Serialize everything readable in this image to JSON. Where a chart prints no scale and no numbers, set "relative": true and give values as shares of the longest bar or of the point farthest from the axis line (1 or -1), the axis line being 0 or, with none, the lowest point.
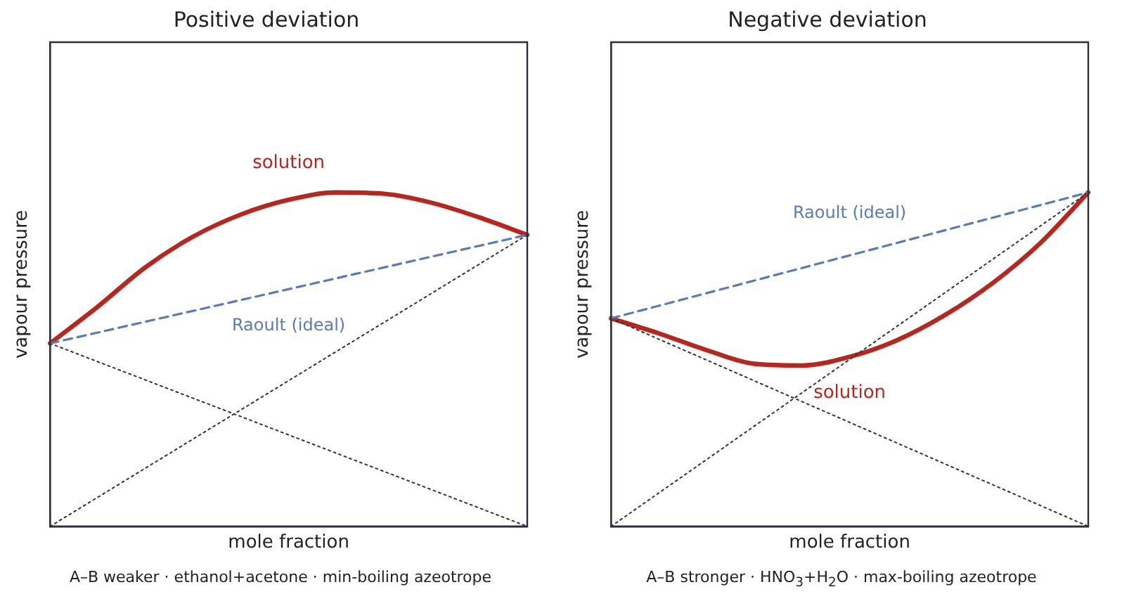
{
  "chart_data": [
    {
      "type": "line",
      "title": "Positive deviation",
      "xlabel": "mole fraction",
      "ylabel": "vapour pressure",
      "relative": true,
      "tick_labels": false,
      "grid": false,
      "marker": "none",
      "categories": [
        null,
        null,
        null,
        null,
        null,
        null,
        null,
        null,
        null,
        null,
        null
      ],
      "series": [
        {
          "name": "Raoult (ideal)",
          "color": "#5b7bb5",
          "line_style": "dashed",
          "values": [
            0.548,
            null,
            null,
            null,
            null,
            null,
            null,
            null,
            null,
            null,
            0.873
          ]
        },
        {
          "color": "#333333",
          "line_style": "dotted",
          "values": [
            0.548,
            null,
            null,
            null,
            null,
            null,
            null,
            null,
            null,
            null,
            0
          ]
        },
        {
          "color": "#333333",
          "line_style": "dotted",
          "values": [
            0,
            null,
            null,
            null,
            null,
            null,
            null,
            null,
            null,
            null,
            0.873
          ]
        },
        {
          "name": "solution",
          "color": "#b5271f",
          "line_style": "solid",
          "values": [
            0.548,
            0.658,
            0.776,
            0.868,
            0.934,
            0.978,
            1,
            0.996,
            0.969,
            0.925,
            0.873
          ]
        }
      ],
      "annotations": [
        "A–B weaker · ethanol+acetone · min-boiling azeotrope"
      ]
    },
    {
      "type": "line",
      "title": "Negative deviation",
      "xlabel": "mole fraction",
      "ylabel": "vapour pressure",
      "relative": true,
      "tick_labels": false,
      "grid": false,
      "marker": "none",
      "categories": [
        null,
        null,
        null,
        null,
        null,
        null,
        null,
        null,
        null,
        null,
        null
      ],
      "series": [
        {
          "name": "Raoult (ideal)",
          "color": "#5b7bb5",
          "line_style": "dashed",
          "values": [
            0.623,
            null,
            null,
            null,
            null,
            null,
            null,
            null,
            null,
            null,
            1
          ]
        },
        {
          "color": "#333333",
          "line_style": "dotted",
          "values": [
            0.623,
            null,
            null,
            null,
            null,
            null,
            null,
            null,
            null,
            null,
            0
          ]
        },
        {
          "color": "#333333",
          "line_style": "dotted",
          "values": [
            0,
            null,
            null,
            null,
            null,
            null,
            null,
            null,
            null,
            null,
            1
          ]
        },
        {
          "name": "solution",
          "color": "#b5271f",
          "line_style": "solid",
          "values": [
            0.623,
            0.578,
            0.528,
            0.487,
            0.482,
            0.508,
            0.558,
            0.633,
            0.729,
            0.849,
            1
          ]
        }
      ],
      "annotations": [
        "A–B stronger · HNO$_{3}$+H$_{2}$O · max-boiling azeotrope"
      ]
    }
  ]
}
